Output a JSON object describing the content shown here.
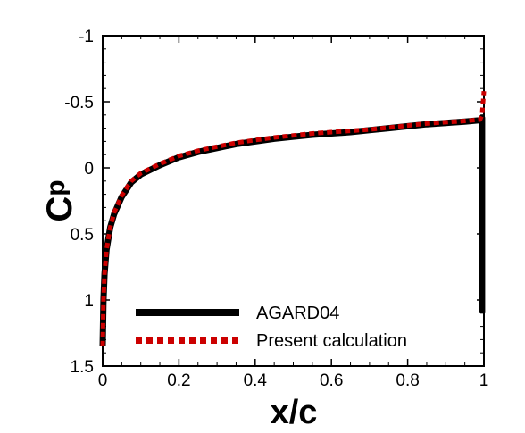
{
  "chart_data": {
    "type": "line",
    "title": "",
    "xlabel": "x/c",
    "ylabel": "Cp",
    "ylabel_main": "C",
    "ylabel_sub": "p",
    "xlim": [
      0,
      1
    ],
    "ylim": [
      1.5,
      -1
    ],
    "y_inverted": true,
    "grid": false,
    "legend_position": "bottom-left",
    "x_ticks": [
      0,
      0.2,
      0.4,
      0.6,
      0.8,
      1
    ],
    "x_tick_labels": [
      "0",
      "0.2",
      "0.4",
      "0.6",
      "0.8",
      "1"
    ],
    "y_ticks": [
      -1,
      -0.5,
      0,
      0.5,
      1,
      1.5
    ],
    "y_tick_labels": [
      "-1",
      "-0.5",
      "0",
      "0.5",
      "1",
      "1.5"
    ],
    "series": [
      {
        "name": "AGARD04",
        "color": "#000000",
        "style": "solid",
        "x": [
          0.0,
          0.002,
          0.005,
          0.01,
          0.02,
          0.03,
          0.05,
          0.075,
          0.1,
          0.15,
          0.2,
          0.25,
          0.3,
          0.35,
          0.4,
          0.45,
          0.5,
          0.55,
          0.6,
          0.65,
          0.7,
          0.75,
          0.8,
          0.85,
          0.9,
          0.95,
          0.99,
          0.995,
          0.995,
          0.995
        ],
        "y": [
          1.35,
          1.0,
          0.8,
          0.62,
          0.45,
          0.35,
          0.22,
          0.11,
          0.05,
          -0.02,
          -0.08,
          -0.12,
          -0.15,
          -0.18,
          -0.2,
          -0.22,
          -0.235,
          -0.25,
          -0.26,
          -0.27,
          -0.285,
          -0.3,
          -0.315,
          -0.33,
          -0.34,
          -0.35,
          -0.36,
          -0.38,
          0.5,
          1.1
        ]
      },
      {
        "name": "Present calculation",
        "color": "#cc0000",
        "style": "dashed",
        "x": [
          0.0,
          0.002,
          0.005,
          0.01,
          0.02,
          0.03,
          0.05,
          0.075,
          0.1,
          0.15,
          0.2,
          0.25,
          0.3,
          0.35,
          0.4,
          0.45,
          0.5,
          0.55,
          0.6,
          0.65,
          0.7,
          0.75,
          0.8,
          0.85,
          0.9,
          0.95,
          0.99,
          0.995,
          1.0
        ],
        "y": [
          1.35,
          1.0,
          0.8,
          0.62,
          0.45,
          0.34,
          0.21,
          0.1,
          0.04,
          -0.03,
          -0.09,
          -0.13,
          -0.16,
          -0.19,
          -0.21,
          -0.23,
          -0.245,
          -0.26,
          -0.27,
          -0.28,
          -0.29,
          -0.305,
          -0.32,
          -0.335,
          -0.345,
          -0.355,
          -0.365,
          -0.4,
          -0.58
        ]
      }
    ]
  }
}
